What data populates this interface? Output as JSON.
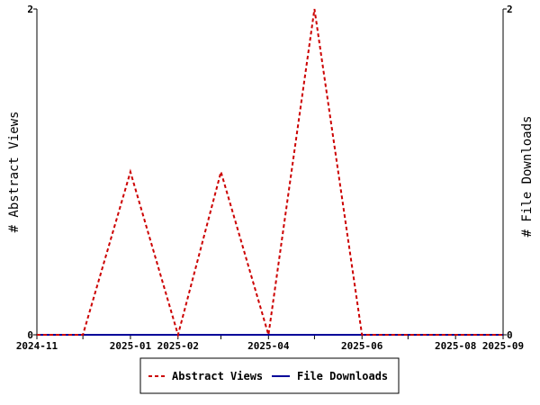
{
  "chart_data": {
    "type": "line",
    "x": [
      "2024-11",
      "2024-12",
      "2025-01",
      "2025-02",
      "2025-03",
      "2025-04",
      "2025-05",
      "2025-06",
      "2025-07",
      "2025-08",
      "2025-09"
    ],
    "x_tick_labels": [
      "2024-11",
      "2025-01",
      "2025-02",
      "2025-04",
      "2025-06",
      "2025-08",
      "2025-09"
    ],
    "ylabel_left": "# Abstract Views",
    "ylabel_right": "# File Downloads",
    "ylim_left": [
      0,
      2
    ],
    "ylim_right": [
      0,
      2
    ],
    "y_tick_labels_left": [
      "0",
      "2"
    ],
    "y_tick_labels_right": [
      "0",
      "2"
    ],
    "series": [
      {
        "name": "Abstract Views",
        "axis": "left",
        "color": "#cc0000",
        "dash": "dashed",
        "points": [
          {
            "x": "2024-11-01",
            "y": 0
          },
          {
            "x": "2024-12-01",
            "y": 0
          },
          {
            "x": "2025-01-01",
            "y": 1
          },
          {
            "x": "2025-02-01",
            "y": 0
          },
          {
            "x": "2025-03-01",
            "y": 1
          },
          {
            "x": "2025-04-01",
            "y": 0
          },
          {
            "x": "2025-05-01",
            "y": 2
          },
          {
            "x": "2025-06-01",
            "y": 0
          },
          {
            "x": "2025-07-01",
            "y": 0
          },
          {
            "x": "2025-08-01",
            "y": 0
          },
          {
            "x": "2025-09-01",
            "y": 0
          }
        ]
      },
      {
        "name": "File Downloads",
        "axis": "right",
        "color": "#000099",
        "dash": "solid",
        "points": [
          {
            "x": "2024-11-01",
            "y": 0
          },
          {
            "x": "2024-12-01",
            "y": 0
          },
          {
            "x": "2025-01-01",
            "y": 0
          },
          {
            "x": "2025-02-01",
            "y": 0
          },
          {
            "x": "2025-03-01",
            "y": 0
          },
          {
            "x": "2025-04-01",
            "y": 0
          },
          {
            "x": "2025-05-01",
            "y": 0
          },
          {
            "x": "2025-06-01",
            "y": 0
          },
          {
            "x": "2025-07-01",
            "y": 0
          },
          {
            "x": "2025-08-01",
            "y": 0
          },
          {
            "x": "2025-09-01",
            "y": 0
          }
        ]
      }
    ],
    "legend": {
      "position": "bottom",
      "entries": [
        {
          "label": "Abstract Views",
          "color": "#cc0000",
          "dash": "dashed"
        },
        {
          "label": "File Downloads",
          "color": "#000099",
          "dash": "solid"
        }
      ]
    },
    "grid": false
  }
}
